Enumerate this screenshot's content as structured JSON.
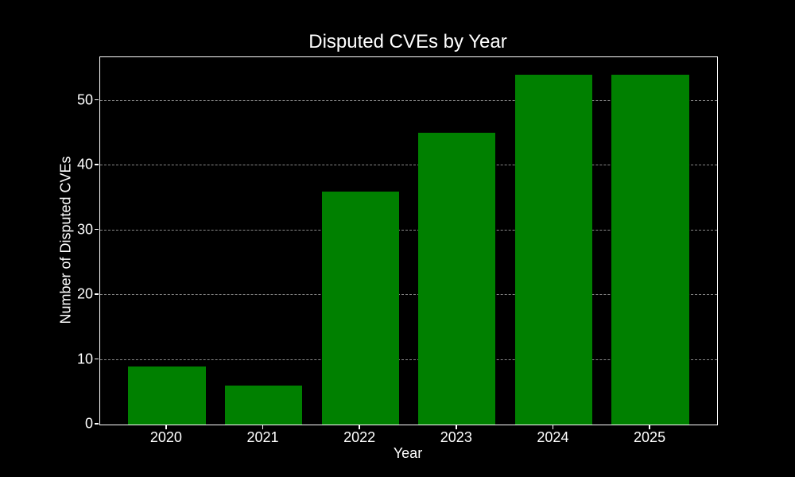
{
  "chart_data": {
    "type": "bar",
    "title": "Disputed CVEs by Year",
    "xlabel": "Year",
    "ylabel": "Number of Disputed CVEs",
    "categories": [
      "2020",
      "2021",
      "2022",
      "2023",
      "2024",
      "2025"
    ],
    "values": [
      9,
      6,
      36,
      45,
      54,
      54
    ],
    "yticks": [
      0,
      10,
      20,
      30,
      40,
      50
    ],
    "ylim": [
      0,
      56.7
    ],
    "grid": "horizontal-dashed",
    "legend": null,
    "colors": {
      "background": "#000000",
      "bar": "#008000",
      "text": "#ffffff",
      "grid": "#888888",
      "frame": "#ffffff"
    }
  }
}
